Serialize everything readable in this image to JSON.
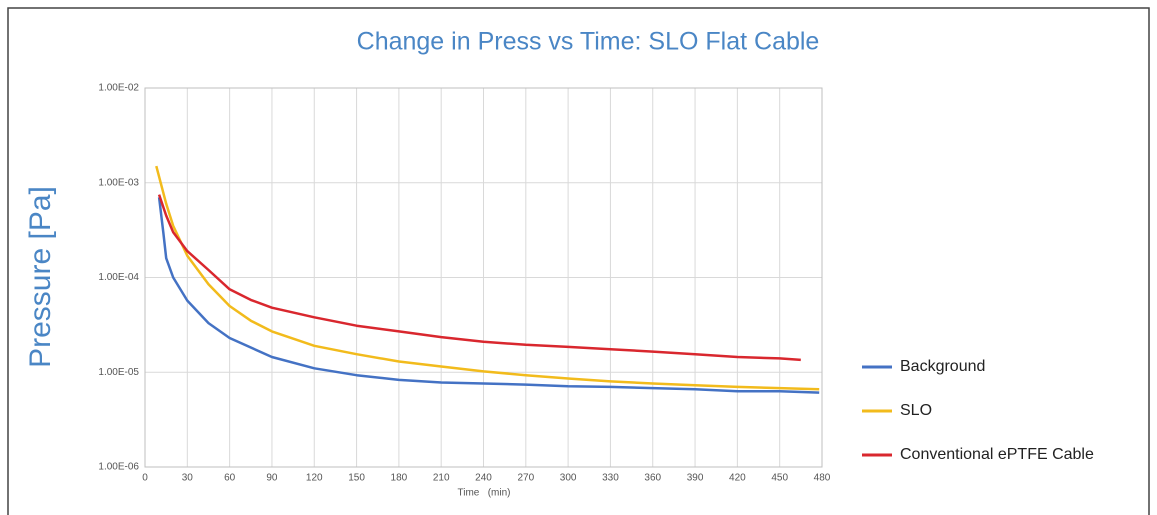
{
  "chart_data": {
    "type": "line",
    "title": "Change in Press vs Time: SLO Flat Cable",
    "xlabel": "Time   (min)",
    "ylabel": "Pressure [Pa]",
    "log_y": true,
    "grid": true,
    "legend": "right",
    "xlim": [
      0,
      480
    ],
    "xticks": [
      0,
      30,
      60,
      90,
      120,
      150,
      180,
      210,
      240,
      270,
      300,
      330,
      360,
      390,
      420,
      450,
      480
    ],
    "ylim": [
      1e-06,
      0.01
    ],
    "yticks": [
      {
        "value": 1e-06,
        "label": "1.00E-06"
      },
      {
        "value": 1e-05,
        "label": "1.00E-05"
      },
      {
        "value": 0.0001,
        "label": "1.00E-04"
      },
      {
        "value": 0.001,
        "label": "1.00E-03"
      },
      {
        "value": 0.01,
        "label": "1.00E-02"
      }
    ],
    "series": [
      {
        "name": "Background",
        "color": "#4472c4",
        "x": [
          10,
          13,
          15,
          20,
          30,
          45,
          60,
          90,
          120,
          150,
          180,
          210,
          240,
          270,
          300,
          330,
          360,
          390,
          420,
          450,
          478
        ],
        "values": [
          0.0007,
          0.0003,
          0.00016,
          0.0001,
          5.7e-05,
          3.3e-05,
          2.3e-05,
          1.45e-05,
          1.1e-05,
          9.3e-06,
          8.3e-06,
          7.8e-06,
          7.6e-06,
          7.4e-06,
          7.1e-06,
          7e-06,
          6.8e-06,
          6.6e-06,
          6.3e-06,
          6.3e-06,
          6.1e-06
        ]
      },
      {
        "name": "SLO",
        "color": "#f2bb1c",
        "x": [
          8,
          15,
          20,
          30,
          45,
          60,
          75,
          90,
          120,
          150,
          180,
          210,
          240,
          270,
          300,
          330,
          360,
          390,
          420,
          450,
          478
        ],
        "values": [
          0.0015,
          0.0006,
          0.00035,
          0.00017,
          8.5e-05,
          5e-05,
          3.5e-05,
          2.7e-05,
          1.9e-05,
          1.55e-05,
          1.3e-05,
          1.15e-05,
          1.02e-05,
          9.3e-06,
          8.6e-06,
          8e-06,
          7.6e-06,
          7.3e-06,
          7e-06,
          6.8e-06,
          6.6e-06
        ]
      },
      {
        "name": "Conventional ePTFE Cable",
        "color": "#d9272e",
        "x": [
          10,
          15,
          20,
          30,
          45,
          60,
          75,
          90,
          120,
          150,
          180,
          210,
          240,
          270,
          300,
          330,
          360,
          390,
          420,
          450,
          465
        ],
        "values": [
          0.00075,
          0.00045,
          0.0003,
          0.00019,
          0.00012,
          7.5e-05,
          5.8e-05,
          4.8e-05,
          3.8e-05,
          3.1e-05,
          2.7e-05,
          2.35e-05,
          2.1e-05,
          1.95e-05,
          1.85e-05,
          1.75e-05,
          1.65e-05,
          1.55e-05,
          1.45e-05,
          1.4e-05,
          1.35e-05
        ]
      }
    ]
  }
}
